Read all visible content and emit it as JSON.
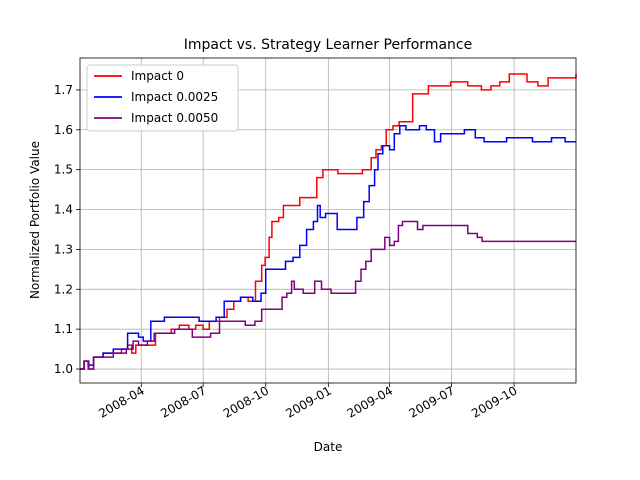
{
  "chart_data": {
    "type": "line",
    "title": "Impact vs. Strategy Learner Performance",
    "xlabel": "Date",
    "ylabel": "Normalized Portfolio Value",
    "xlim": [
      "2008-01-02",
      "2009-12-31"
    ],
    "ylim": [
      0.965,
      1.78
    ],
    "x_ticks": [
      "2008-04-01",
      "2008-07-01",
      "2008-10-01",
      "2009-01-01",
      "2009-04-01",
      "2009-07-01",
      "2009-10-01"
    ],
    "x_tick_labels": [
      "2008-04",
      "2008-07",
      "2008-10",
      "2009-01",
      "2009-04",
      "2009-07",
      "2009-10"
    ],
    "y_ticks": [
      1.0,
      1.1,
      1.2,
      1.3,
      1.4,
      1.5,
      1.6,
      1.7
    ],
    "y_tick_labels": [
      "1.0",
      "1.1",
      "1.2",
      "1.3",
      "1.4",
      "1.5",
      "1.6",
      "1.7"
    ],
    "grid": true,
    "legend_position": "top-left",
    "series": [
      {
        "name": "Impact 0",
        "color": "#ff0000",
        "points": [
          [
            "2008-01-02",
            1.0
          ],
          [
            "2008-01-08",
            1.02
          ],
          [
            "2008-01-14",
            1.0
          ],
          [
            "2008-01-22",
            1.03
          ],
          [
            "2008-02-05",
            1.04
          ],
          [
            "2008-02-20",
            1.04
          ],
          [
            "2008-03-03",
            1.05
          ],
          [
            "2008-03-12",
            1.06
          ],
          [
            "2008-03-18",
            1.04
          ],
          [
            "2008-03-24",
            1.06
          ],
          [
            "2008-04-15",
            1.06
          ],
          [
            "2008-04-22",
            1.09
          ],
          [
            "2008-05-05",
            1.09
          ],
          [
            "2008-05-15",
            1.1
          ],
          [
            "2008-05-27",
            1.11
          ],
          [
            "2008-06-10",
            1.1
          ],
          [
            "2008-06-20",
            1.11
          ],
          [
            "2008-07-01",
            1.1
          ],
          [
            "2008-07-10",
            1.12
          ],
          [
            "2008-07-25",
            1.13
          ],
          [
            "2008-08-05",
            1.15
          ],
          [
            "2008-08-15",
            1.17
          ],
          [
            "2008-08-25",
            1.18
          ],
          [
            "2008-09-05",
            1.17
          ],
          [
            "2008-09-16",
            1.22
          ],
          [
            "2008-09-25",
            1.26
          ],
          [
            "2008-09-30",
            1.28
          ],
          [
            "2008-10-06",
            1.33
          ],
          [
            "2008-10-10",
            1.37
          ],
          [
            "2008-10-20",
            1.38
          ],
          [
            "2008-10-27",
            1.41
          ],
          [
            "2008-11-07",
            1.41
          ],
          [
            "2008-11-20",
            1.43
          ],
          [
            "2008-12-05",
            1.43
          ],
          [
            "2008-12-15",
            1.48
          ],
          [
            "2008-12-24",
            1.5
          ],
          [
            "2009-01-05",
            1.5
          ],
          [
            "2009-01-15",
            1.49
          ],
          [
            "2009-02-01",
            1.49
          ],
          [
            "2009-02-20",
            1.5
          ],
          [
            "2009-03-05",
            1.53
          ],
          [
            "2009-03-12",
            1.55
          ],
          [
            "2009-03-20",
            1.56
          ],
          [
            "2009-03-27",
            1.6
          ],
          [
            "2009-04-06",
            1.61
          ],
          [
            "2009-04-15",
            1.62
          ],
          [
            "2009-04-25",
            1.62
          ],
          [
            "2009-05-05",
            1.69
          ],
          [
            "2009-05-15",
            1.69
          ],
          [
            "2009-05-28",
            1.71
          ],
          [
            "2009-06-15",
            1.71
          ],
          [
            "2009-06-30",
            1.72
          ],
          [
            "2009-07-15",
            1.72
          ],
          [
            "2009-07-25",
            1.71
          ],
          [
            "2009-08-05",
            1.71
          ],
          [
            "2009-08-14",
            1.7
          ],
          [
            "2009-08-28",
            1.71
          ],
          [
            "2009-09-10",
            1.72
          ],
          [
            "2009-09-24",
            1.74
          ],
          [
            "2009-10-10",
            1.74
          ],
          [
            "2009-10-20",
            1.72
          ],
          [
            "2009-11-05",
            1.71
          ],
          [
            "2009-11-20",
            1.73
          ],
          [
            "2009-12-10",
            1.73
          ],
          [
            "2009-12-31",
            1.74
          ]
        ]
      },
      {
        "name": "Impact 0.0025",
        "color": "#0000ff",
        "points": [
          [
            "2008-01-02",
            1.0
          ],
          [
            "2008-01-08",
            1.02
          ],
          [
            "2008-01-14",
            1.01
          ],
          [
            "2008-01-22",
            1.03
          ],
          [
            "2008-02-05",
            1.04
          ],
          [
            "2008-02-20",
            1.05
          ],
          [
            "2008-03-05",
            1.05
          ],
          [
            "2008-03-12",
            1.09
          ],
          [
            "2008-03-20",
            1.09
          ],
          [
            "2008-03-28",
            1.08
          ],
          [
            "2008-04-04",
            1.07
          ],
          [
            "2008-04-15",
            1.12
          ],
          [
            "2008-05-05",
            1.13
          ],
          [
            "2008-05-25",
            1.13
          ],
          [
            "2008-06-10",
            1.13
          ],
          [
            "2008-06-25",
            1.12
          ],
          [
            "2008-07-08",
            1.12
          ],
          [
            "2008-07-20",
            1.13
          ],
          [
            "2008-08-01",
            1.17
          ],
          [
            "2008-08-25",
            1.18
          ],
          [
            "2008-09-12",
            1.17
          ],
          [
            "2008-09-24",
            1.19
          ],
          [
            "2008-10-01",
            1.25
          ],
          [
            "2008-10-20",
            1.25
          ],
          [
            "2008-10-30",
            1.27
          ],
          [
            "2008-11-10",
            1.28
          ],
          [
            "2008-11-20",
            1.31
          ],
          [
            "2008-11-30",
            1.35
          ],
          [
            "2008-12-10",
            1.37
          ],
          [
            "2008-12-16",
            1.41
          ],
          [
            "2008-12-20",
            1.38
          ],
          [
            "2008-12-28",
            1.39
          ],
          [
            "2009-01-08",
            1.39
          ],
          [
            "2009-01-14",
            1.35
          ],
          [
            "2009-02-05",
            1.35
          ],
          [
            "2009-02-12",
            1.38
          ],
          [
            "2009-02-22",
            1.42
          ],
          [
            "2009-03-02",
            1.46
          ],
          [
            "2009-03-10",
            1.5
          ],
          [
            "2009-03-15",
            1.54
          ],
          [
            "2009-03-22",
            1.56
          ],
          [
            "2009-04-01",
            1.55
          ],
          [
            "2009-04-08",
            1.59
          ],
          [
            "2009-04-16",
            1.61
          ],
          [
            "2009-04-25",
            1.6
          ],
          [
            "2009-05-05",
            1.6
          ],
          [
            "2009-05-15",
            1.61
          ],
          [
            "2009-05-25",
            1.6
          ],
          [
            "2009-06-06",
            1.57
          ],
          [
            "2009-06-15",
            1.59
          ],
          [
            "2009-07-01",
            1.59
          ],
          [
            "2009-07-20",
            1.6
          ],
          [
            "2009-08-05",
            1.58
          ],
          [
            "2009-08-18",
            1.57
          ],
          [
            "2009-09-05",
            1.57
          ],
          [
            "2009-09-20",
            1.58
          ],
          [
            "2009-10-15",
            1.58
          ],
          [
            "2009-10-22",
            1.58
          ],
          [
            "2009-10-28",
            1.57
          ],
          [
            "2009-11-15",
            1.57
          ],
          [
            "2009-11-25",
            1.58
          ],
          [
            "2009-12-15",
            1.57
          ],
          [
            "2009-12-31",
            1.57
          ]
        ]
      },
      {
        "name": "Impact 0.0050",
        "color": "#800080",
        "points": [
          [
            "2008-01-02",
            1.0
          ],
          [
            "2008-01-08",
            1.02
          ],
          [
            "2008-01-15",
            1.0
          ],
          [
            "2008-01-22",
            1.03
          ],
          [
            "2008-02-05",
            1.03
          ],
          [
            "2008-02-20",
            1.04
          ],
          [
            "2008-03-01",
            1.04
          ],
          [
            "2008-03-10",
            1.05
          ],
          [
            "2008-03-20",
            1.07
          ],
          [
            "2008-03-28",
            1.06
          ],
          [
            "2008-04-10",
            1.07
          ],
          [
            "2008-04-20",
            1.09
          ],
          [
            "2008-05-05",
            1.09
          ],
          [
            "2008-05-20",
            1.1
          ],
          [
            "2008-06-05",
            1.1
          ],
          [
            "2008-06-15",
            1.08
          ],
          [
            "2008-07-01",
            1.08
          ],
          [
            "2008-07-12",
            1.09
          ],
          [
            "2008-07-25",
            1.12
          ],
          [
            "2008-08-10",
            1.12
          ],
          [
            "2008-08-20",
            1.12
          ],
          [
            "2008-09-01",
            1.11
          ],
          [
            "2008-09-15",
            1.12
          ],
          [
            "2008-09-25",
            1.15
          ],
          [
            "2008-10-05",
            1.15
          ],
          [
            "2008-10-15",
            1.15
          ],
          [
            "2008-10-25",
            1.18
          ],
          [
            "2008-11-01",
            1.19
          ],
          [
            "2008-11-08",
            1.22
          ],
          [
            "2008-11-12",
            1.2
          ],
          [
            "2008-11-18",
            1.2
          ],
          [
            "2008-11-25",
            1.19
          ],
          [
            "2008-12-05",
            1.19
          ],
          [
            "2008-12-12",
            1.22
          ],
          [
            "2008-12-22",
            1.2
          ],
          [
            "2009-01-05",
            1.19
          ],
          [
            "2009-02-01",
            1.19
          ],
          [
            "2009-02-10",
            1.22
          ],
          [
            "2009-02-18",
            1.25
          ],
          [
            "2009-02-25",
            1.27
          ],
          [
            "2009-03-05",
            1.3
          ],
          [
            "2009-03-15",
            1.3
          ],
          [
            "2009-03-25",
            1.33
          ],
          [
            "2009-04-01",
            1.31
          ],
          [
            "2009-04-08",
            1.32
          ],
          [
            "2009-04-14",
            1.36
          ],
          [
            "2009-04-20",
            1.37
          ],
          [
            "2009-05-05",
            1.37
          ],
          [
            "2009-05-12",
            1.35
          ],
          [
            "2009-05-20",
            1.36
          ],
          [
            "2009-06-15",
            1.36
          ],
          [
            "2009-07-15",
            1.36
          ],
          [
            "2009-07-25",
            1.34
          ],
          [
            "2009-08-08",
            1.33
          ],
          [
            "2009-08-15",
            1.32
          ],
          [
            "2009-09-15",
            1.32
          ],
          [
            "2009-10-15",
            1.32
          ],
          [
            "2009-11-15",
            1.32
          ],
          [
            "2009-12-10",
            1.32
          ],
          [
            "2009-12-31",
            1.32
          ]
        ]
      }
    ]
  }
}
